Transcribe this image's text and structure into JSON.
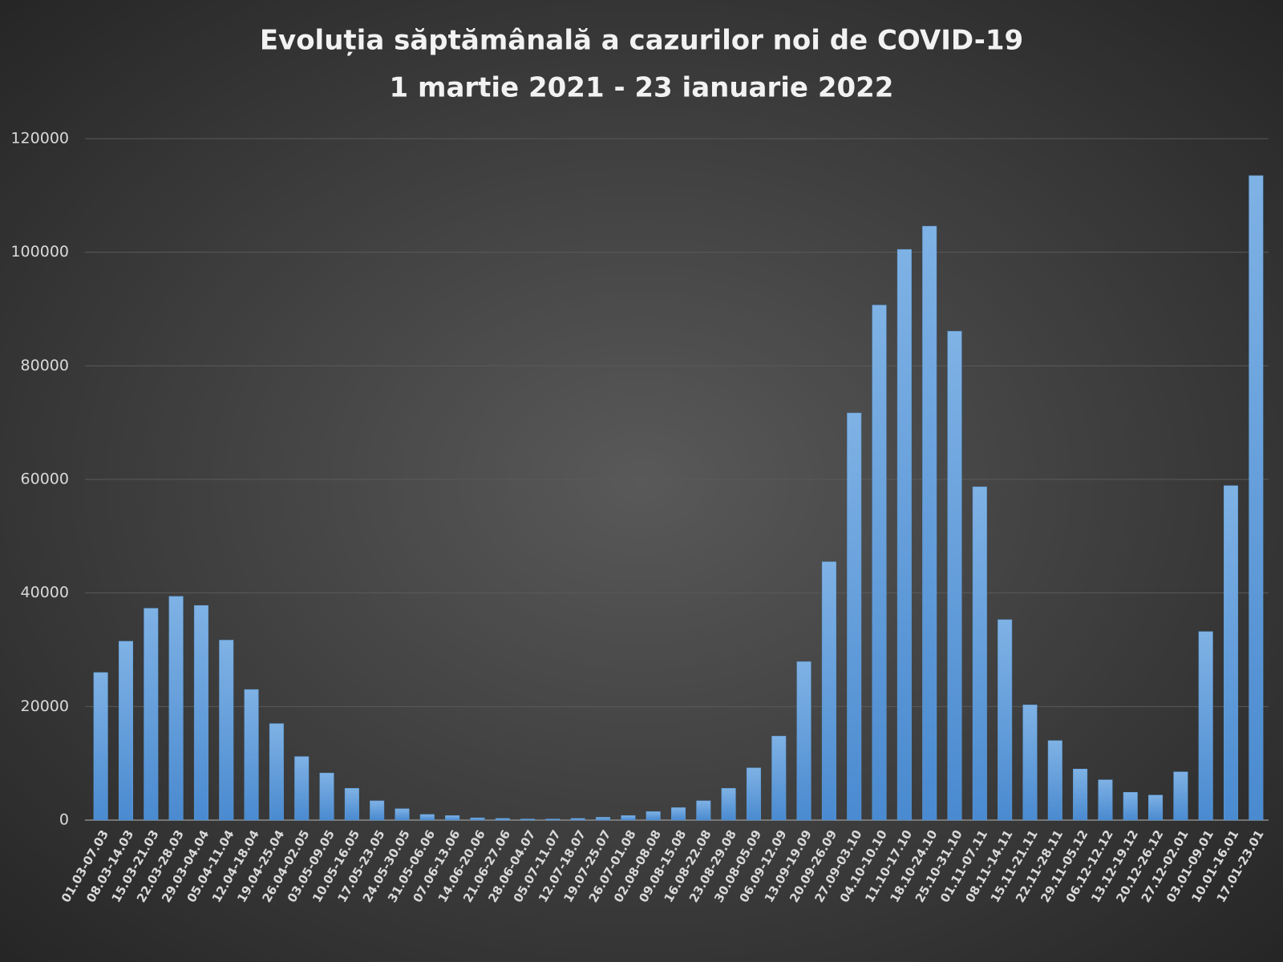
{
  "chart_data": {
    "type": "bar",
    "title": "Evoluția săptămânală a cazurilor noi de COVID-19",
    "subtitle": "1 martie 2021 - 23 ianuarie 2022",
    "categories": [
      "01.03-07.03",
      "08.03-14.03",
      "15.03-21.03",
      "22.03-28.03",
      "29.03-04.04",
      "05.04-11.04",
      "12.04-18.04",
      "19.04-25.04",
      "26.04-02.05",
      "03.05-09.05",
      "10.05-16.05",
      "17.05-23.05",
      "24.05-30.05",
      "31.05-06.06",
      "07.06-13.06",
      "14.06-20.06",
      "21.06-27.06",
      "28.06-04.07",
      "05.07-11.07",
      "12.07-18.07",
      "19.07-25.07",
      "26.07-01.08",
      "02.08-08.08",
      "09.08-15.08",
      "16.08-22.08",
      "23.08-29.08",
      "30.08-05.09",
      "06.09-12.09",
      "13.09-19.09",
      "20.09-26.09",
      "27.09-03.10",
      "04.10-10.10",
      "11.10-17.10",
      "18.10-24.10",
      "25.10-31.10",
      "01.11-07.11",
      "08.11-14.11",
      "15.11-21.11",
      "22.11-28.11",
      "29.11-05.12",
      "06.12-12.12",
      "13.12-19.12",
      "20.12-26.12",
      "27.12-02.01",
      "03.01-09.01",
      "10.01-16.01",
      "17.01-23.01"
    ],
    "values": [
      26000,
      31500,
      37300,
      39400,
      37800,
      31700,
      23000,
      17000,
      11200,
      8300,
      5600,
      3400,
      2000,
      1000,
      800,
      400,
      300,
      200,
      200,
      300,
      500,
      800,
      1500,
      2200,
      3400,
      5600,
      9200,
      14800,
      27900,
      45500,
      71700,
      90700,
      100500,
      104600,
      86100,
      58700,
      35300,
      20300,
      14000,
      9000,
      7100,
      4900,
      4400,
      8500,
      33200,
      58900,
      113500
    ],
    "color": "#5b9bd5",
    "ylim": [
      0,
      120000
    ],
    "yticks": [
      0,
      20000,
      40000,
      60000,
      80000,
      100000,
      120000
    ],
    "grid": true
  }
}
